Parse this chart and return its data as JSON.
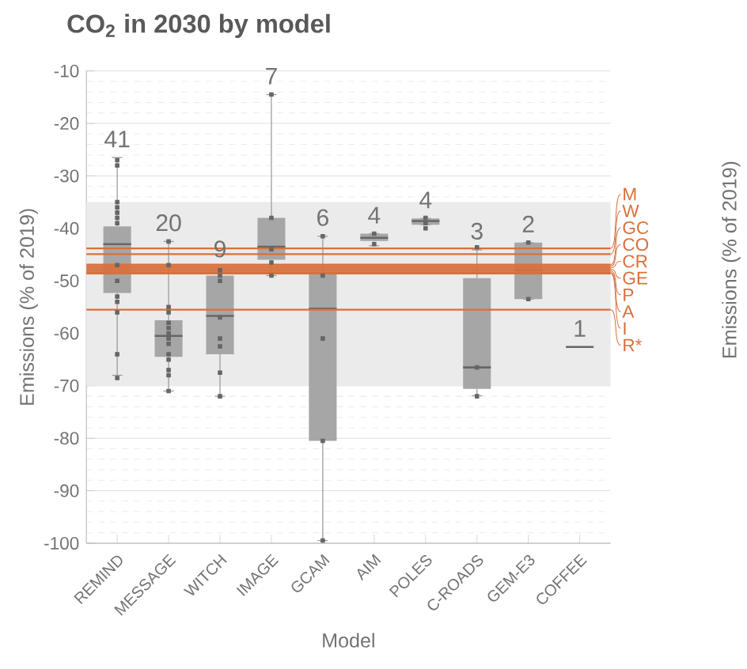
{
  "chart_data": {
    "type": "box",
    "title": "CO$_{2}$ in 2030 by model",
    "xlabel": "Model",
    "ylabel": "Emissions (% of 2019)",
    "legend_title": "Emissions (% of 2019)",
    "categories": [
      "REMIND",
      "MESSAGE",
      "WITCH",
      "IMAGE",
      "GCAM",
      "AIM",
      "POLES",
      "C-ROADS",
      "GEM-E3",
      "COFFEE"
    ],
    "color": "#a6a6a6",
    "boxes": [
      {
        "low": -68,
        "q1": -52.3,
        "median": -43,
        "q3": -39.6,
        "high": -26.5,
        "outliers": [
          -27,
          -28,
          -35,
          -36,
          -37,
          -38,
          -39,
          -47,
          -50,
          -53,
          -54,
          -56,
          -64,
          -68.5
        ]
      },
      {
        "low": -71,
        "q1": -64.5,
        "median": -60.5,
        "q3": -57.5,
        "high": -42.5,
        "outliers": [
          -42.5,
          -47,
          -55,
          -56,
          -58,
          -59,
          -60,
          -61,
          -62,
          -64,
          -65,
          -67,
          -68,
          -71
        ]
      },
      {
        "low": -72,
        "q1": -64,
        "median": -56.7,
        "q3": -49,
        "high": -47.5,
        "outliers": [
          -48,
          -49,
          -50,
          -57,
          -61,
          -62.5,
          -67.5,
          -72
        ]
      },
      {
        "low": -49,
        "q1": -46,
        "median": -43.5,
        "q3": -38,
        "high": -14.5,
        "outliers": [
          -14.5,
          -38,
          -44,
          -46.5,
          -49
        ]
      },
      {
        "low": -99.5,
        "q1": -80.5,
        "median": -55.3,
        "q3": -48.5,
        "high": -41.5,
        "outliers": [
          -41.5,
          -49,
          -61,
          -80.5,
          -99.5
        ]
      },
      {
        "low": -43.3,
        "q1": -42.4,
        "median": -41.8,
        "q3": -41,
        "high": -41,
        "outliers": [
          -41,
          -43
        ]
      },
      {
        "low": -39.3,
        "q1": -39.3,
        "median": -38.6,
        "q3": -38.1,
        "high": -38.1,
        "outliers": [
          -38,
          -39,
          -40
        ]
      },
      {
        "low": -71.9,
        "q1": -70.6,
        "median": -66.5,
        "q3": -49.5,
        "high": -44.1,
        "outliers": [
          -43.6,
          -66.5,
          -72
        ]
      },
      {
        "low": -53.5,
        "q1": -53.5,
        "median": -48,
        "q3": -42.7,
        "high": -42.7,
        "outliers": [
          -42.7,
          -53.5
        ]
      },
      {
        "low": -62.6,
        "q1": -62.6,
        "median": -62.6,
        "q3": -62.6,
        "high": -62.6
      }
    ],
    "ylim": [
      -100,
      -10
    ],
    "yticks": [
      -10,
      -20,
      -30,
      -40,
      -50,
      -60,
      -70,
      -80,
      -90,
      -100
    ],
    "grid": "y",
    "bands": [
      {
        "axis": "y",
        "from": -70,
        "to": -35,
        "color": "#ebebeb"
      }
    ],
    "ref_lines": [
      {
        "axis": "y",
        "value": -43.8,
        "label": "M",
        "color": "#d9703c"
      },
      {
        "axis": "y",
        "value": -44.9,
        "label": "W",
        "color": "#d9703c"
      },
      {
        "axis": "y",
        "value": -46.9,
        "label": "GC",
        "color": "#d9703c"
      },
      {
        "axis": "y",
        "value": -47.2,
        "label": "CO",
        "color": "#d9703c"
      },
      {
        "axis": "y",
        "value": -47.5,
        "label": "CR",
        "color": "#d9703c"
      },
      {
        "axis": "y",
        "value": -47.8,
        "label": "GE",
        "color": "#d9703c"
      },
      {
        "axis": "y",
        "value": -48.1,
        "label": "P",
        "color": "#d9703c"
      },
      {
        "axis": "y",
        "value": -48.4,
        "label": "A",
        "color": "#d9703c"
      },
      {
        "axis": "y",
        "value": -48.6,
        "label": "I",
        "color": "#d9703c"
      },
      {
        "axis": "y",
        "value": -55.5,
        "label": "R*",
        "color": "#d9703c"
      }
    ],
    "legend": "right",
    "annotations": [
      "41",
      "20",
      "9",
      "7",
      "6",
      "4",
      "4",
      "3",
      "2",
      "1"
    ]
  }
}
